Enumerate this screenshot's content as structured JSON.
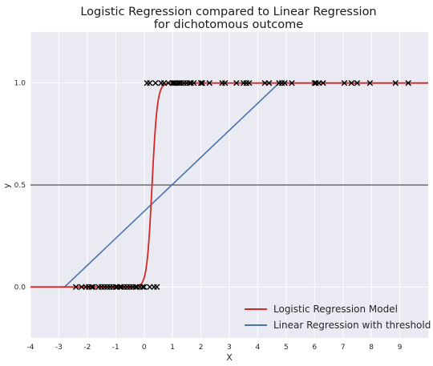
{
  "chart_data": {
    "type": "scatter",
    "title_line1": "Logistic Regression compared to Linear Regression",
    "title_line2": "for dichotomous outcome",
    "xlabel": "X",
    "ylabel": "y",
    "xlim": [
      -4,
      10
    ],
    "ylim": [
      -0.25,
      1.25
    ],
    "xticks": [
      -4,
      -3,
      -2,
      -1,
      0,
      1,
      2,
      3,
      4,
      5,
      6,
      7,
      8,
      9
    ],
    "xtick_labels": [
      "-4",
      "-3",
      "-2",
      "-1",
      "0",
      "1",
      "2",
      "3",
      "4",
      "5",
      "6",
      "7",
      "8",
      "9"
    ],
    "yticks": [
      0.0,
      0.5,
      1.0
    ],
    "ytick_labels": [
      "0.0",
      "0.5",
      "1.0"
    ],
    "grid": true,
    "legend_position": "lower-right",
    "hline": {
      "y": 0.5,
      "color": "#555555"
    },
    "series": [
      {
        "name": "Logistic Regression Model",
        "kind": "line",
        "color": "#d62728",
        "function": "sigmoid",
        "midpoint": 0.28,
        "steepness": 11.0
      },
      {
        "name": "Linear Regression with threshold",
        "kind": "line",
        "color": "#4c72b0",
        "points": [
          [
            -4,
            0
          ],
          [
            -2.8,
            0
          ],
          [
            4.75,
            1
          ],
          [
            10,
            1
          ]
        ]
      },
      {
        "kind": "scatter",
        "marker": "x",
        "color": "#000000",
        "points_y0": [
          -2.4,
          -2.2,
          -2.05,
          -1.95,
          -1.85,
          -1.8,
          -1.6,
          -1.5,
          -1.4,
          -1.3,
          -1.2,
          -1.1,
          -1.0,
          -0.95,
          -0.85,
          -0.8,
          -0.7,
          -0.6,
          -0.5,
          -0.4,
          -0.3,
          -0.25,
          -0.15,
          -0.05,
          0.0,
          0.2,
          0.35,
          0.45
        ],
        "points_y1": [
          0.1,
          0.2,
          0.4,
          0.6,
          0.7,
          0.85,
          1.0,
          1.05,
          1.1,
          1.2,
          1.25,
          1.3,
          1.4,
          1.5,
          1.6,
          1.65,
          1.75,
          2.0,
          2.05,
          2.3,
          2.75,
          2.85,
          3.25,
          3.5,
          3.6,
          3.7,
          4.25,
          4.4,
          4.75,
          4.85,
          4.95,
          5.2,
          6.0,
          6.05,
          6.15,
          6.3,
          7.05,
          7.3,
          7.5,
          7.95,
          8.85,
          9.3
        ]
      }
    ]
  }
}
